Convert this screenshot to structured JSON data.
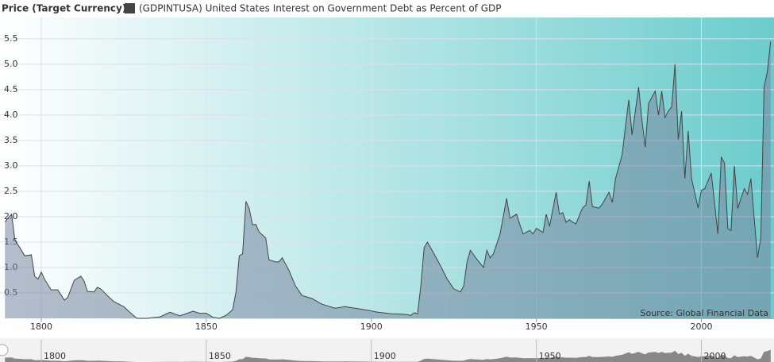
{
  "chart_data": {
    "type": "area",
    "legend_title": "Price (Target Currency)",
    "annotation": "Source: Global Financial Data",
    "x": [
      1789,
      1791,
      1792,
      1795,
      1797,
      1798,
      1799,
      1800,
      1801,
      1803,
      1805,
      1807,
      1808,
      1810,
      1812,
      1813,
      1814,
      1816,
      1817,
      1818,
      1820,
      1822,
      1825,
      1827,
      1829,
      1832,
      1836,
      1839,
      1842,
      1846,
      1848,
      1850,
      1852,
      1854,
      1856,
      1858,
      1859,
      1860,
      1861,
      1862,
      1863,
      1864,
      1865,
      1866,
      1868,
      1869,
      1871,
      1872,
      1873,
      1875,
      1877,
      1879,
      1882,
      1885,
      1889,
      1892,
      1895,
      1898,
      1902,
      1906,
      1910,
      1912,
      1913,
      1914,
      1915,
      1916,
      1917,
      1919,
      1921,
      1923,
      1925,
      1927,
      1928,
      1929,
      1930,
      1932,
      1934,
      1935,
      1936,
      1937,
      1939,
      1941,
      1942,
      1944,
      1945,
      1946,
      1948,
      1949,
      1950,
      1952,
      1953,
      1954,
      1956,
      1957,
      1958,
      1959,
      1960,
      1961,
      1962,
      1964,
      1965,
      1966,
      1967,
      1969,
      1970,
      1972,
      1973,
      1974,
      1976,
      1977,
      1978,
      1979,
      1981,
      1982,
      1983,
      1984,
      1986,
      1987,
      1988,
      1989,
      1990,
      1991,
      1992,
      1993,
      1994,
      1995,
      1996,
      1997,
      1999,
      2000,
      2001,
      2002,
      2003,
      2005,
      2006,
      2007,
      2008,
      2009,
      2010,
      2011,
      2012,
      2013,
      2014,
      2015,
      2017,
      2018,
      2019,
      2020,
      2021
    ],
    "series": [
      {
        "name": "(GDPINTUSA) United States Interest on Government Debt as Percent of GDP",
        "color": "#444444",
        "values": [
          1.9,
          2.05,
          1.55,
          1.23,
          1.25,
          0.83,
          0.77,
          0.91,
          0.77,
          0.56,
          0.56,
          0.36,
          0.41,
          0.75,
          0.83,
          0.73,
          0.53,
          0.52,
          0.61,
          0.58,
          0.45,
          0.33,
          0.23,
          0.11,
          0.0,
          0.0,
          0.03,
          0.12,
          0.05,
          0.14,
          0.1,
          0.1,
          0.02,
          0.0,
          0.06,
          0.17,
          0.52,
          1.23,
          1.27,
          2.3,
          2.16,
          1.84,
          1.85,
          1.7,
          1.58,
          1.15,
          1.11,
          1.11,
          1.19,
          0.95,
          0.64,
          0.45,
          0.39,
          0.28,
          0.2,
          0.23,
          0.2,
          0.17,
          0.12,
          0.09,
          0.08,
          0.06,
          0.11,
          0.09,
          0.64,
          1.39,
          1.5,
          1.27,
          1.03,
          0.77,
          0.58,
          0.52,
          0.64,
          1.11,
          1.34,
          1.16,
          1.0,
          1.34,
          1.19,
          1.27,
          1.66,
          2.36,
          1.97,
          2.05,
          1.84,
          1.66,
          1.73,
          1.66,
          1.77,
          1.69,
          2.05,
          1.81,
          2.48,
          2.05,
          2.08,
          1.89,
          1.94,
          1.89,
          1.86,
          2.17,
          2.23,
          2.7,
          2.2,
          2.17,
          2.25,
          2.48,
          2.28,
          2.75,
          3.22,
          3.77,
          4.3,
          3.61,
          4.55,
          3.89,
          3.37,
          4.23,
          4.47,
          4.0,
          4.47,
          3.95,
          4.08,
          4.16,
          5.0,
          3.52,
          4.08,
          2.75,
          3.69,
          2.75,
          2.17,
          2.52,
          2.55,
          2.7,
          2.86,
          1.66,
          3.17,
          3.06,
          1.77,
          1.73,
          3.0,
          2.16,
          2.36,
          2.55,
          2.44,
          2.75,
          1.19,
          1.58,
          4.55,
          4.86,
          5.45
        ]
      }
    ],
    "xlim": [
      1787.5,
      2022
    ],
    "xticks": [
      1800,
      1850,
      1900,
      1950,
      2000
    ],
    "ylim": [
      0,
      5.92
    ],
    "yticks": [
      0.5,
      {
        "value": 1,
        "label": "1.0"
      },
      1.5,
      {
        "value": 2,
        "label": "2.0"
      },
      2.5,
      {
        "value": 3,
        "label": "3.0"
      },
      3.5,
      {
        "value": 4,
        "label": "4.0"
      },
      4.5,
      {
        "value": 5,
        "label": "5.0"
      },
      5.5
    ],
    "grid": true
  }
}
